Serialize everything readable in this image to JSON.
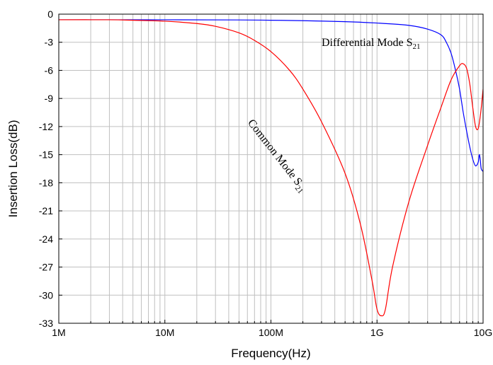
{
  "chart_data": {
    "type": "line",
    "title": "",
    "xlabel": "Frequency(Hz)",
    "ylabel": "Insertion Loss(dB)",
    "x_scale": "log",
    "xlim": [
      1000000,
      10000000000
    ],
    "ylim": [
      -33,
      0
    ],
    "grid": true,
    "x_ticks": [
      {
        "value": 1000000,
        "label": "1M"
      },
      {
        "value": 10000000,
        "label": "10M"
      },
      {
        "value": 100000000,
        "label": "100M"
      },
      {
        "value": 1000000000,
        "label": "1G"
      },
      {
        "value": 10000000000,
        "label": "10G"
      }
    ],
    "y_ticks": [
      {
        "value": 0,
        "label": "0"
      },
      {
        "value": -3,
        "label": "-3"
      },
      {
        "value": -6,
        "label": "-6"
      },
      {
        "value": -9,
        "label": "-9"
      },
      {
        "value": -12,
        "label": "-12"
      },
      {
        "value": -15,
        "label": "-15"
      },
      {
        "value": -18,
        "label": "-18"
      },
      {
        "value": -21,
        "label": "-21"
      },
      {
        "value": -24,
        "label": "-24"
      },
      {
        "value": -27,
        "label": "-27"
      },
      {
        "value": -30,
        "label": "-30"
      },
      {
        "value": -33,
        "label": "-33"
      }
    ],
    "series": [
      {
        "label_main": "Differential Mode S",
        "label_sub": "21",
        "color": "#0000ff",
        "label_angle": 0,
        "label_anchor": [
          300000000,
          -3.4
        ],
        "points": [
          [
            1000000,
            -0.6
          ],
          [
            10000000,
            -0.6
          ],
          [
            50000000,
            -0.62
          ],
          [
            100000000,
            -0.65
          ],
          [
            200000000,
            -0.7
          ],
          [
            500000000,
            -0.8
          ],
          [
            1000000000,
            -0.95
          ],
          [
            2000000000,
            -1.2
          ],
          [
            3000000000,
            -1.6
          ],
          [
            4000000000,
            -2.2
          ],
          [
            4500000000,
            -3.0
          ],
          [
            5000000000,
            -4.2
          ],
          [
            5500000000,
            -6.0
          ],
          [
            6000000000,
            -8.0
          ],
          [
            6500000000,
            -10.5
          ],
          [
            7000000000,
            -12.5
          ],
          [
            7500000000,
            -14.2
          ],
          [
            8000000000,
            -15.5
          ],
          [
            8500000000,
            -16.2
          ],
          [
            9000000000,
            -15.8
          ],
          [
            9200000000,
            -15.0
          ],
          [
            9400000000,
            -15.5
          ],
          [
            9600000000,
            -16.5
          ],
          [
            10000000000,
            -16.8
          ]
        ]
      },
      {
        "label_main": "Common Mode S",
        "label_sub": "21",
        "color": "#ff0000",
        "label_angle": 52,
        "label_anchor": [
          60000000,
          -11.6
        ],
        "points": [
          [
            1000000,
            -0.6
          ],
          [
            3000000,
            -0.6
          ],
          [
            5000000,
            -0.65
          ],
          [
            10000000,
            -0.75
          ],
          [
            20000000,
            -1.0
          ],
          [
            30000000,
            -1.3
          ],
          [
            50000000,
            -2.0
          ],
          [
            70000000,
            -2.8
          ],
          [
            100000000,
            -4.0
          ],
          [
            150000000,
            -6.0
          ],
          [
            200000000,
            -8.0
          ],
          [
            300000000,
            -11.5
          ],
          [
            500000000,
            -17.0
          ],
          [
            700000000,
            -22.5
          ],
          [
            900000000,
            -28.5
          ],
          [
            1000000000,
            -31.5
          ],
          [
            1100000000,
            -32.2
          ],
          [
            1200000000,
            -31.5
          ],
          [
            1400000000,
            -27.0
          ],
          [
            2000000000,
            -20.0
          ],
          [
            3000000000,
            -14.0
          ],
          [
            4000000000,
            -10.0
          ],
          [
            5000000000,
            -7.0
          ],
          [
            6000000000,
            -5.5
          ],
          [
            6500000000,
            -5.3
          ],
          [
            7000000000,
            -5.8
          ],
          [
            7500000000,
            -7.5
          ],
          [
            8000000000,
            -10.0
          ],
          [
            8500000000,
            -12.0
          ],
          [
            9000000000,
            -12.2
          ],
          [
            9500000000,
            -10.5
          ],
          [
            10000000000,
            -8.0
          ]
        ]
      }
    ]
  }
}
